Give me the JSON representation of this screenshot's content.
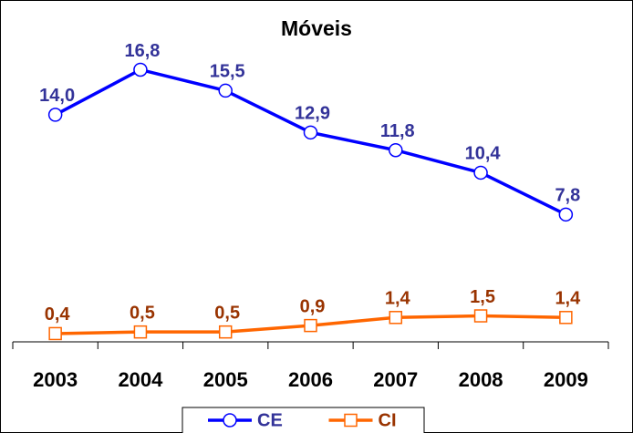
{
  "chart_data": {
    "type": "line",
    "title": "Móveis",
    "categories": [
      "2003",
      "2004",
      "2005",
      "2006",
      "2007",
      "2008",
      "2009"
    ],
    "series": [
      {
        "name": "CE",
        "color": "#0000ff",
        "label_color": "#333399",
        "marker": "circle",
        "values": [
          14.0,
          16.8,
          15.5,
          12.9,
          11.8,
          10.4,
          7.8
        ],
        "value_labels": [
          "14,0",
          "16,8",
          "15,5",
          "12,9",
          "11,8",
          "10,4",
          "7,8"
        ]
      },
      {
        "name": "CI",
        "color": "#ff6600",
        "label_color": "#993300",
        "marker": "square",
        "values": [
          0.4,
          0.5,
          0.5,
          0.9,
          1.4,
          1.5,
          1.4
        ],
        "value_labels": [
          "0,4",
          "0,5",
          "0,5",
          "0,9",
          "1,4",
          "1,5",
          "1,4"
        ]
      }
    ],
    "ylim": [
      0,
      20
    ],
    "legend": "bottom"
  }
}
